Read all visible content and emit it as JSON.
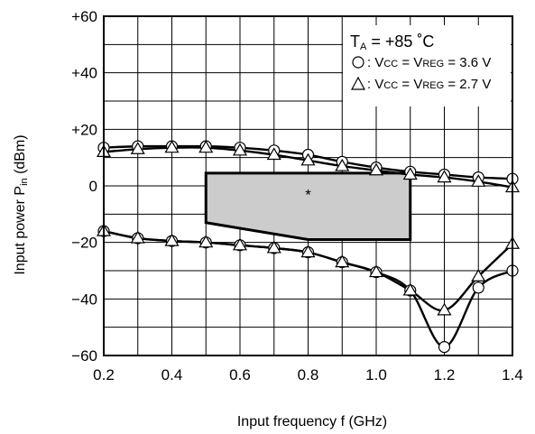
{
  "chart_data": {
    "type": "line",
    "xlabel": "Input frequency  f (GHz)",
    "ylabel_main": "Input power  P",
    "ylabel_sub": "in",
    "ylabel_unit": " (dBm)",
    "xlim": [
      0.2,
      1.4
    ],
    "ylim": [
      -60,
      60
    ],
    "x_ticks": [
      "0.2",
      "0.4",
      "0.6",
      "0.8",
      "1.0",
      "1.2",
      "1.4"
    ],
    "y_ticks": [
      "+60",
      "+40",
      "+20",
      "0",
      "−20",
      "−40",
      "−60"
    ],
    "grid": true,
    "x": [
      0.2,
      0.3,
      0.4,
      0.5,
      0.6,
      0.7,
      0.8,
      0.9,
      1.0,
      1.1,
      1.2,
      1.3,
      1.4
    ],
    "series": [
      {
        "marker": "circle",
        "group": "upper",
        "values": [
          13.5,
          14,
          14,
          14,
          13.5,
          12.5,
          11,
          8.5,
          6.5,
          5,
          4,
          3,
          2.5
        ]
      },
      {
        "marker": "triangle",
        "group": "upper",
        "values": [
          12,
          13,
          13.5,
          13.5,
          12.5,
          11,
          9,
          7,
          5.5,
          4,
          3,
          1.5,
          -0.5
        ]
      },
      {
        "marker": "circle",
        "group": "lower",
        "values": [
          -16,
          -18.5,
          -19.5,
          -20,
          -21,
          -22,
          -23.5,
          -27,
          -30.5,
          -37,
          -57,
          -36,
          -30
        ]
      },
      {
        "marker": "triangle",
        "group": "lower",
        "values": [
          -16,
          -18.5,
          -19.5,
          -20,
          -21,
          -22,
          -23.5,
          -27,
          -30.5,
          -37,
          -44,
          -32,
          -20.5
        ]
      }
    ],
    "shaded_region": {
      "x": [
        0.5,
        1.1,
        1.1,
        0.8,
        0.5
      ],
      "y": [
        4.5,
        4.5,
        -19,
        -19,
        -13
      ],
      "color": "#cccccc",
      "marker_text": "*"
    },
    "legend": {
      "title_main": "T",
      "title_sub": "A",
      "title_rest": " = +85 ˚C",
      "placement": "top-right",
      "entries": [
        {
          "symbol": "circle",
          "sep": ":",
          "p1": "V",
          "s1": "CC",
          "p2": " = V",
          "s2": "REG",
          "p3": " = 3.6 V"
        },
        {
          "symbol": "triangle",
          "sep": ":",
          "p1": "V",
          "s1": "CC",
          "p2": " = V",
          "s2": "REG",
          "p3": " = 2.7 V"
        }
      ]
    }
  }
}
